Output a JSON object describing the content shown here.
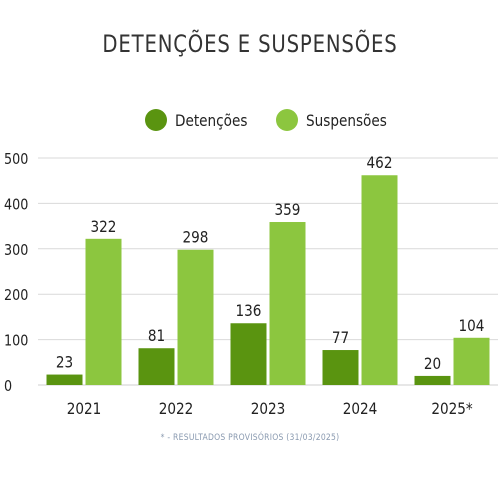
{
  "chart_data": {
    "type": "bar",
    "title": "DETENÇÕES E SUSPENSÕES",
    "categories": [
      "2021",
      "2022",
      "2023",
      "2024",
      "2025*"
    ],
    "series": [
      {
        "name": "Detenções",
        "color": "#5a9410",
        "values": [
          23,
          81,
          136,
          77,
          20
        ]
      },
      {
        "name": "Suspensões",
        "color": "#8cc63f",
        "values": [
          322,
          298,
          359,
          462,
          104
        ]
      }
    ],
    "ylim": [
      0,
      500
    ],
    "yticks": [
      0,
      100,
      200,
      300,
      400,
      500
    ],
    "grid": true,
    "legend_position": "top-center",
    "footnote": "* - RESULTADOS PROVISÓRIOS (31/03/2025)"
  }
}
